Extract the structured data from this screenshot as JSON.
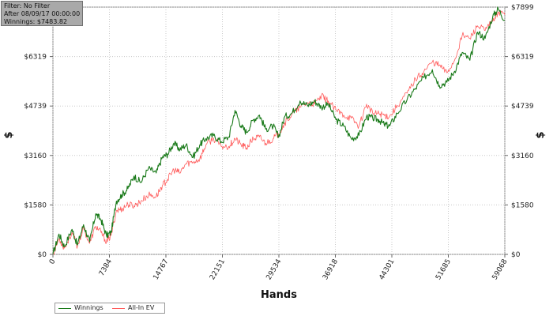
{
  "filter_box": {
    "line1": "Filter: No Filter",
    "line2": "After 08/09/17 00:00:00",
    "line3": "Winnings: $7483.82"
  },
  "chart_data": {
    "type": "line",
    "xlabel": "Hands",
    "ylabel": "$",
    "xlim": [
      0,
      59068
    ],
    "ylim": [
      0,
      7899
    ],
    "x_ticks": [
      "0",
      "7384",
      "14767",
      "22151",
      "29534",
      "36918",
      "44301",
      "51685",
      "59068"
    ],
    "x_tick_values": [
      0,
      7384,
      14767,
      22151,
      29534,
      36918,
      44301,
      51685,
      59068
    ],
    "y_ticks": [
      "$0",
      "$1580",
      "$3160",
      "$4739",
      "$6319",
      "$7899"
    ],
    "y_tick_values": [
      0,
      1580,
      3160,
      4739,
      6319,
      7899
    ],
    "grid": true,
    "legend_position": "bottom-left",
    "series": [
      {
        "name": "Winnings",
        "color": "#1a7a1a",
        "points": [
          [
            0,
            0
          ],
          [
            800,
            650
          ],
          [
            1500,
            250
          ],
          [
            2500,
            800
          ],
          [
            3200,
            300
          ],
          [
            4000,
            950
          ],
          [
            4800,
            400
          ],
          [
            5600,
            1300
          ],
          [
            6300,
            1100
          ],
          [
            7000,
            600
          ],
          [
            7600,
            700
          ],
          [
            8300,
            1700
          ],
          [
            9000,
            1900
          ],
          [
            9800,
            2100
          ],
          [
            10600,
            2500
          ],
          [
            11500,
            2300
          ],
          [
            12500,
            2750
          ],
          [
            13500,
            2600
          ],
          [
            14300,
            3100
          ],
          [
            15000,
            3200
          ],
          [
            15800,
            3550
          ],
          [
            16600,
            3350
          ],
          [
            17400,
            3500
          ],
          [
            18300,
            3100
          ],
          [
            19200,
            3500
          ],
          [
            20000,
            3700
          ],
          [
            21000,
            3800
          ],
          [
            22000,
            3600
          ],
          [
            23000,
            3750
          ],
          [
            23800,
            4600
          ],
          [
            24600,
            4100
          ],
          [
            25300,
            3900
          ],
          [
            26200,
            4300
          ],
          [
            27000,
            4450
          ],
          [
            27800,
            4000
          ],
          [
            28800,
            4100
          ],
          [
            29500,
            3750
          ],
          [
            30300,
            4400
          ],
          [
            31200,
            4500
          ],
          [
            32300,
            4900
          ],
          [
            33300,
            4750
          ],
          [
            34200,
            4900
          ],
          [
            35100,
            4700
          ],
          [
            36000,
            4800
          ],
          [
            37000,
            4300
          ],
          [
            38000,
            4100
          ],
          [
            39000,
            3700
          ],
          [
            40000,
            3800
          ],
          [
            41000,
            4400
          ],
          [
            41800,
            4350
          ],
          [
            42600,
            4300
          ],
          [
            43300,
            4150
          ],
          [
            44000,
            4100
          ],
          [
            45000,
            4500
          ],
          [
            46300,
            4950
          ],
          [
            47400,
            5300
          ],
          [
            48500,
            5650
          ],
          [
            49600,
            5900
          ],
          [
            50500,
            5400
          ],
          [
            51500,
            5500
          ],
          [
            52500,
            5850
          ],
          [
            53500,
            6450
          ],
          [
            54500,
            6200
          ],
          [
            55500,
            7100
          ],
          [
            56500,
            6900
          ],
          [
            57500,
            7600
          ],
          [
            58200,
            7850
          ],
          [
            59068,
            7480
          ]
        ]
      },
      {
        "name": "All-In EV",
        "color": "#ff5c5c",
        "points": [
          [
            0,
            0
          ],
          [
            800,
            500
          ],
          [
            1500,
            200
          ],
          [
            2500,
            700
          ],
          [
            3200,
            250
          ],
          [
            4000,
            850
          ],
          [
            4800,
            350
          ],
          [
            5600,
            900
          ],
          [
            6300,
            700
          ],
          [
            7000,
            400
          ],
          [
            7600,
            600
          ],
          [
            8300,
            1400
          ],
          [
            9000,
            1450
          ],
          [
            9800,
            1600
          ],
          [
            10600,
            1550
          ],
          [
            11500,
            1700
          ],
          [
            12500,
            1900
          ],
          [
            13500,
            1850
          ],
          [
            14300,
            2200
          ],
          [
            15000,
            2400
          ],
          [
            15800,
            2700
          ],
          [
            16600,
            2600
          ],
          [
            17400,
            2900
          ],
          [
            18300,
            2950
          ],
          [
            19200,
            3050
          ],
          [
            20000,
            3500
          ],
          [
            21000,
            3700
          ],
          [
            22000,
            3450
          ],
          [
            23000,
            3450
          ],
          [
            23800,
            3700
          ],
          [
            24600,
            3500
          ],
          [
            25300,
            3400
          ],
          [
            26200,
            3700
          ],
          [
            27000,
            3750
          ],
          [
            27800,
            3550
          ],
          [
            28800,
            3700
          ],
          [
            29500,
            3850
          ],
          [
            30300,
            4200
          ],
          [
            31200,
            4450
          ],
          [
            32300,
            4700
          ],
          [
            33300,
            4850
          ],
          [
            34200,
            4800
          ],
          [
            35100,
            5050
          ],
          [
            36000,
            4900
          ],
          [
            37000,
            4600
          ],
          [
            38000,
            4450
          ],
          [
            39000,
            4350
          ],
          [
            40000,
            4100
          ],
          [
            41000,
            4800
          ],
          [
            41800,
            4500
          ],
          [
            42600,
            4500
          ],
          [
            43300,
            4450
          ],
          [
            44000,
            4400
          ],
          [
            45000,
            4750
          ],
          [
            46300,
            5150
          ],
          [
            47400,
            5600
          ],
          [
            48500,
            5850
          ],
          [
            49600,
            6150
          ],
          [
            50500,
            6050
          ],
          [
            51500,
            5800
          ],
          [
            52500,
            6200
          ],
          [
            53500,
            7000
          ],
          [
            54500,
            6900
          ],
          [
            55500,
            7300
          ],
          [
            56500,
            7150
          ],
          [
            57500,
            7450
          ],
          [
            58200,
            7750
          ],
          [
            59068,
            7650
          ]
        ]
      }
    ]
  }
}
